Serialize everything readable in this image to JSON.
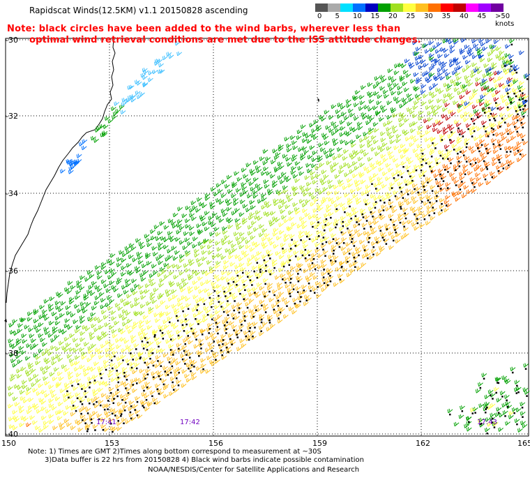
{
  "title": "Rapidscat Winds(12.5KM) v1.1 20150828 ascending",
  "note_line1": "Note: black circles have been added to the wind barbs, wherever less than",
  "note_line2": "optimal wind retrieval conditions are met due to the ISS attitude changes.",
  "legend": {
    "colors": [
      "#555555",
      "#aaaaaa",
      "#00e0ff",
      "#0070ff",
      "#0000c0",
      "#00a000",
      "#a0e020",
      "#ffff40",
      "#ffc020",
      "#ff7000",
      "#ff0000",
      "#c00000",
      "#ff00ff",
      "#a000ff",
      "#7000a0"
    ],
    "labels": [
      "0",
      "5",
      "10",
      "15",
      "20",
      "25",
      "30",
      "35",
      "40",
      "45",
      ">50 knots"
    ]
  },
  "axes": {
    "lat_labels": [
      "-30",
      "-32",
      "-34",
      "-36",
      "-38",
      "-40"
    ],
    "lon_labels": [
      "150",
      "153",
      "156",
      "159",
      "162",
      "165"
    ]
  },
  "time_labels": [
    "17:41",
    "17:42",
    "17:43"
  ],
  "footer": {
    "line1": "Note: 1) Times are GMT 2)Times along bottom correspond to measurement at ~30S",
    "line2": "3)Data buffer is 22 hrs from 20150828 4) Black wind barbs indicate possible contamination",
    "line3": "NOAA/NESDIS/Center for Satellite Applications and Research"
  }
}
